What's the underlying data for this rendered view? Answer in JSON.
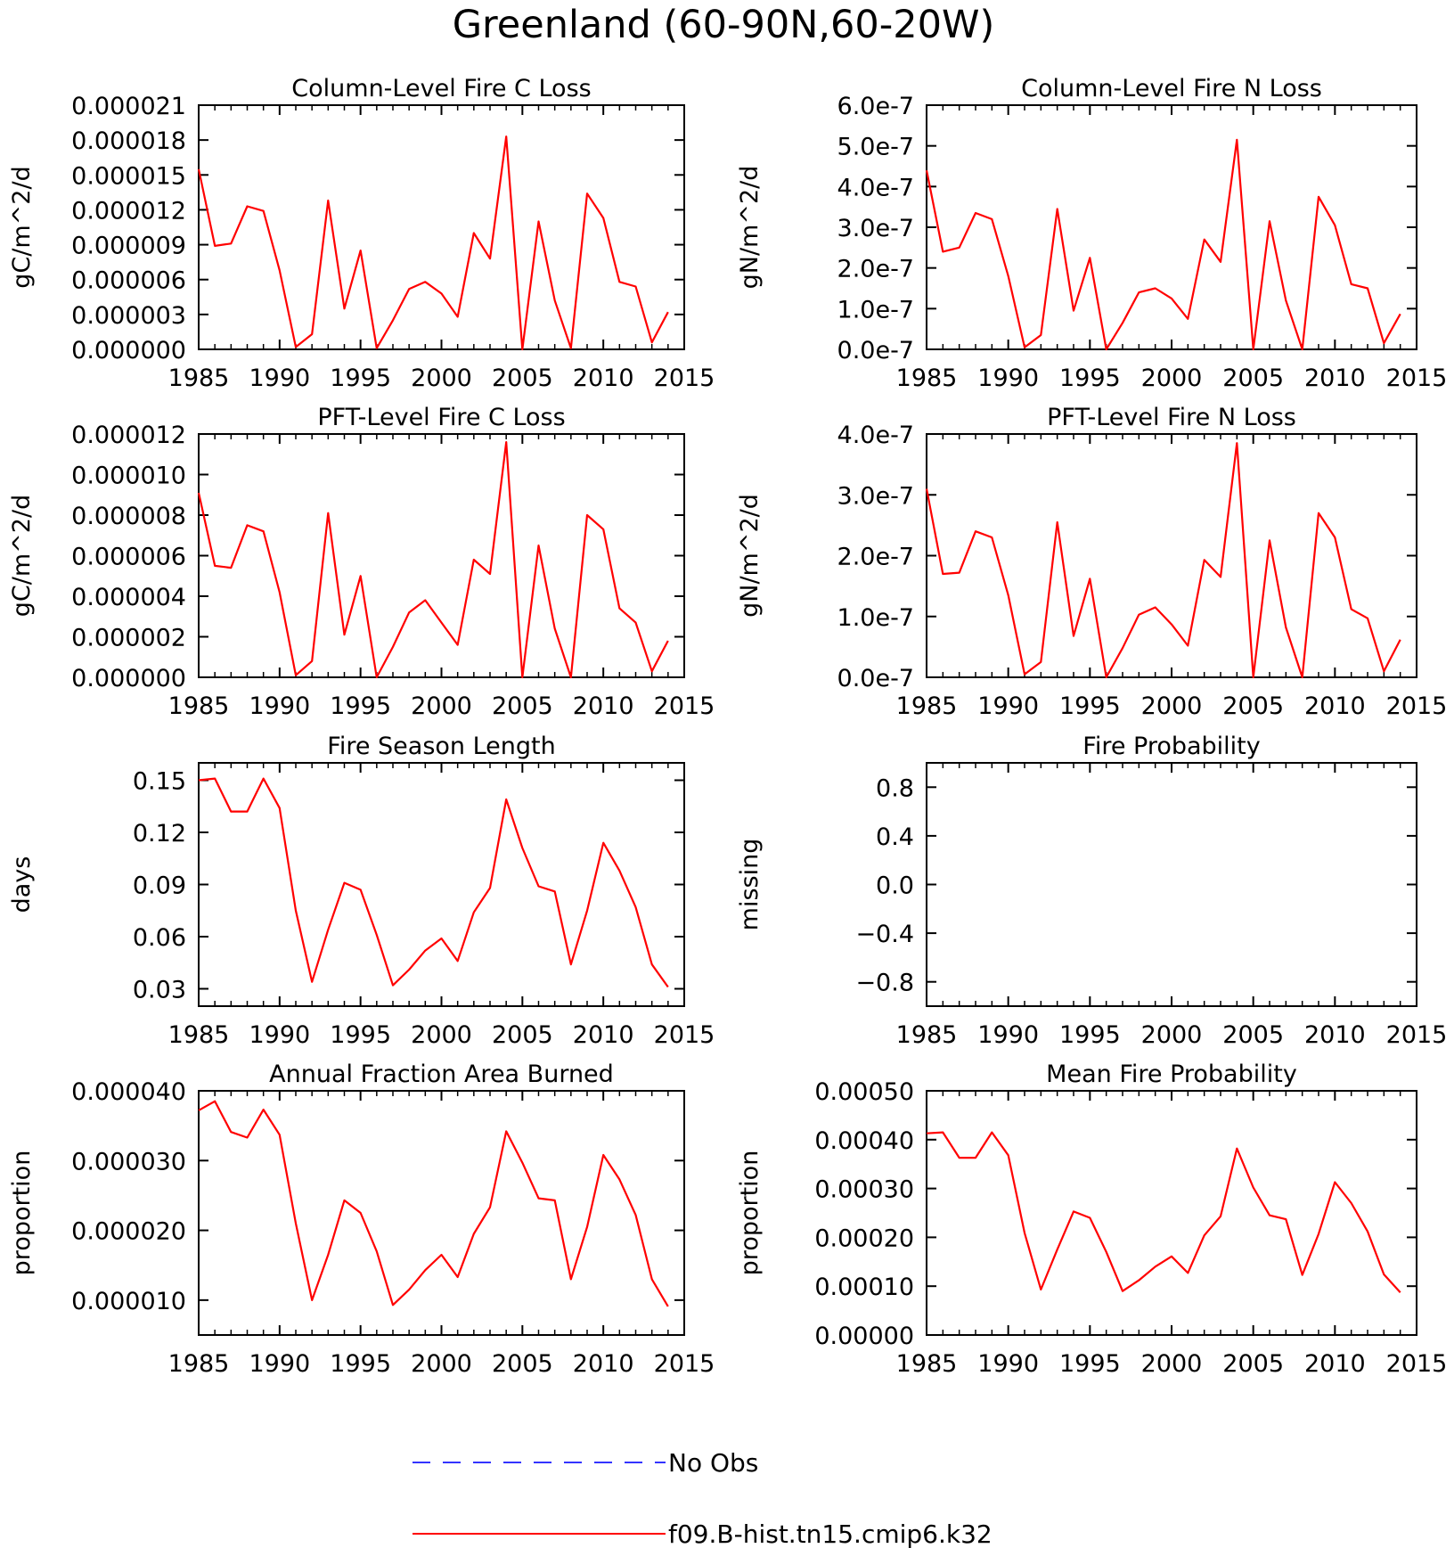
{
  "figure_title": "Greenland (60-90N,60-20W)",
  "legend": {
    "items": [
      {
        "label": "No Obs",
        "color": "#3333ff",
        "dashed": true
      },
      {
        "label": "f09.B-hist.tn15.cmip6.k32",
        "color": "#ff0000",
        "dashed": false
      }
    ]
  },
  "chart_data": [
    {
      "type": "line",
      "title": "Column-Level Fire C Loss",
      "ylabel": "gC/m^2/d",
      "xlabel": "",
      "xlim": [
        1985,
        2015
      ],
      "xticks": [
        1985,
        1990,
        1995,
        2000,
        2005,
        2010,
        2015
      ],
      "xtick_labels": [
        "1985",
        "1990",
        "1995",
        "2000",
        "2005",
        "2010",
        "2015"
      ],
      "ylim": [
        0,
        2.1e-05
      ],
      "yticks": [
        0,
        3e-06,
        6e-06,
        9e-06,
        1.2e-05,
        1.5e-05,
        1.8e-05,
        2.1e-05
      ],
      "ytick_labels": [
        "0.000000",
        "0.000003",
        "0.000006",
        "0.000009",
        "0.000012",
        "0.000015",
        "0.000018",
        "0.000021"
      ],
      "x": [
        1985,
        1986,
        1987,
        1988,
        1989,
        1990,
        1991,
        1992,
        1993,
        1994,
        1995,
        1996,
        1997,
        1998,
        1999,
        2000,
        2001,
        2002,
        2003,
        2004,
        2005,
        2006,
        2007,
        2008,
        2009,
        2010,
        2011,
        2012,
        2013,
        2014
      ],
      "series": [
        {
          "color": "#ff0000",
          "values": [
            1.55e-05,
            8.9e-06,
            9.1e-06,
            1.23e-05,
            1.19e-05,
            6.8e-06,
            2e-07,
            1.3e-06,
            1.28e-05,
            3.5e-06,
            8.5e-06,
            1e-07,
            2.5e-06,
            5.2e-06,
            5.8e-06,
            4.8e-06,
            2.8e-06,
            1e-05,
            7.8e-06,
            1.83e-05,
            0.0,
            1.1e-05,
            4.2e-06,
            1e-07,
            1.34e-05,
            1.13e-05,
            5.8e-06,
            5.4e-06,
            6e-07,
            3.2e-06
          ]
        }
      ]
    },
    {
      "type": "line",
      "title": "Column-Level Fire N Loss",
      "ylabel": "gN/m^2/d",
      "xlabel": "",
      "xlim": [
        1985,
        2015
      ],
      "xticks": [
        1985,
        1990,
        1995,
        2000,
        2005,
        2010,
        2015
      ],
      "xtick_labels": [
        "1985",
        "1990",
        "1995",
        "2000",
        "2005",
        "2010",
        "2015"
      ],
      "ylim": [
        0,
        6e-07
      ],
      "yticks": [
        0,
        1e-07,
        2e-07,
        3e-07,
        4e-07,
        5e-07,
        6e-07
      ],
      "ytick_labels": [
        "0.0e-7",
        "1.0e-7",
        "2.0e-7",
        "3.0e-7",
        "4.0e-7",
        "5.0e-7",
        "6.0e-7"
      ],
      "x": [
        1985,
        1986,
        1987,
        1988,
        1989,
        1990,
        1991,
        1992,
        1993,
        1994,
        1995,
        1996,
        1997,
        1998,
        1999,
        2000,
        2001,
        2002,
        2003,
        2004,
        2005,
        2006,
        2007,
        2008,
        2009,
        2010,
        2011,
        2012,
        2013,
        2014
      ],
      "series": [
        {
          "color": "#ff0000",
          "values": [
            4.4e-07,
            2.4e-07,
            2.5e-07,
            3.35e-07,
            3.2e-07,
            1.8e-07,
            5e-09,
            3.5e-08,
            3.45e-07,
            9.5e-08,
            2.25e-07,
            0.0,
            6.5e-08,
            1.4e-07,
            1.5e-07,
            1.25e-07,
            7.5e-08,
            2.7e-07,
            2.15e-07,
            5.15e-07,
            0.0,
            3.15e-07,
            1.2e-07,
            0.0,
            3.75e-07,
            3.05e-07,
            1.6e-07,
            1.5e-07,
            1.5e-08,
            8.7e-08
          ]
        }
      ]
    },
    {
      "type": "line",
      "title": "PFT-Level Fire C Loss",
      "ylabel": "gC/m^2/d",
      "xlabel": "",
      "xlim": [
        1985,
        2015
      ],
      "xticks": [
        1985,
        1990,
        1995,
        2000,
        2005,
        2010,
        2015
      ],
      "xtick_labels": [
        "1985",
        "1990",
        "1995",
        "2000",
        "2005",
        "2010",
        "2015"
      ],
      "ylim": [
        0,
        1.2e-05
      ],
      "yticks": [
        0,
        2e-06,
        4e-06,
        6e-06,
        8e-06,
        1e-05,
        1.2e-05
      ],
      "ytick_labels": [
        "0.000000",
        "0.000002",
        "0.000004",
        "0.000006",
        "0.000008",
        "0.000010",
        "0.000012"
      ],
      "x": [
        1985,
        1986,
        1987,
        1988,
        1989,
        1990,
        1991,
        1992,
        1993,
        1994,
        1995,
        1996,
        1997,
        1998,
        1999,
        2000,
        2001,
        2002,
        2003,
        2004,
        2005,
        2006,
        2007,
        2008,
        2009,
        2010,
        2011,
        2012,
        2013,
        2014
      ],
      "series": [
        {
          "color": "#ff0000",
          "values": [
            9.1e-06,
            5.5e-06,
            5.4e-06,
            7.5e-06,
            7.2e-06,
            4.2e-06,
            1e-07,
            8e-07,
            8.1e-06,
            2.1e-06,
            5e-06,
            0.0,
            1.5e-06,
            3.2e-06,
            3.8e-06,
            2.7e-06,
            1.6e-06,
            5.8e-06,
            5.1e-06,
            1.16e-05,
            0.0,
            6.5e-06,
            2.4e-06,
            0.0,
            8e-06,
            7.3e-06,
            3.4e-06,
            2.7e-06,
            3e-07,
            1.8e-06
          ]
        }
      ]
    },
    {
      "type": "line",
      "title": "PFT-Level Fire N Loss",
      "ylabel": "gN/m^2/d",
      "xlabel": "",
      "xlim": [
        1985,
        2015
      ],
      "xticks": [
        1985,
        1990,
        1995,
        2000,
        2005,
        2010,
        2015
      ],
      "xtick_labels": [
        "1985",
        "1990",
        "1995",
        "2000",
        "2005",
        "2010",
        "2015"
      ],
      "ylim": [
        0,
        4e-07
      ],
      "yticks": [
        0,
        1e-07,
        2e-07,
        3e-07,
        4e-07
      ],
      "ytick_labels": [
        "0.0e-7",
        "1.0e-7",
        "2.0e-7",
        "3.0e-7",
        "4.0e-7"
      ],
      "x": [
        1985,
        1986,
        1987,
        1988,
        1989,
        1990,
        1991,
        1992,
        1993,
        1994,
        1995,
        1996,
        1997,
        1998,
        1999,
        2000,
        2001,
        2002,
        2003,
        2004,
        2005,
        2006,
        2007,
        2008,
        2009,
        2010,
        2011,
        2012,
        2013,
        2014
      ],
      "series": [
        {
          "color": "#ff0000",
          "values": [
            3.1e-07,
            1.7e-07,
            1.72e-07,
            2.4e-07,
            2.3e-07,
            1.35e-07,
            5e-09,
            2.5e-08,
            2.55e-07,
            6.8e-08,
            1.62e-07,
            0.0,
            4.8e-08,
            1.03e-07,
            1.15e-07,
            8.7e-08,
            5.2e-08,
            1.93e-07,
            1.65e-07,
            3.85e-07,
            0.0,
            2.25e-07,
            8.2e-08,
            0.0,
            2.7e-07,
            2.3e-07,
            1.12e-07,
            9.7e-08,
            1e-08,
            6.2e-08
          ]
        }
      ]
    },
    {
      "type": "line",
      "title": "Fire Season Length",
      "ylabel": "days",
      "xlabel": "",
      "xlim": [
        1985,
        2015
      ],
      "xticks": [
        1985,
        1990,
        1995,
        2000,
        2005,
        2010,
        2015
      ],
      "xtick_labels": [
        "1985",
        "1990",
        "1995",
        "2000",
        "2005",
        "2010",
        "2015"
      ],
      "ylim": [
        0.02,
        0.16
      ],
      "yticks": [
        0.03,
        0.06,
        0.09,
        0.12,
        0.15
      ],
      "ytick_labels": [
        "0.03",
        "0.06",
        "0.09",
        "0.12",
        "0.15"
      ],
      "x": [
        1985,
        1986,
        1987,
        1988,
        1989,
        1990,
        1991,
        1992,
        1993,
        1994,
        1995,
        1996,
        1997,
        1998,
        1999,
        2000,
        2001,
        2002,
        2003,
        2004,
        2005,
        2006,
        2007,
        2008,
        2009,
        2010,
        2011,
        2012,
        2013,
        2014
      ],
      "series": [
        {
          "color": "#ff0000",
          "values": [
            0.15,
            0.151,
            0.132,
            0.132,
            0.151,
            0.134,
            0.075,
            0.034,
            0.064,
            0.091,
            0.087,
            0.061,
            0.032,
            0.041,
            0.052,
            0.059,
            0.046,
            0.074,
            0.088,
            0.139,
            0.111,
            0.089,
            0.086,
            0.044,
            0.075,
            0.114,
            0.098,
            0.077,
            0.044,
            0.031
          ]
        }
      ]
    },
    {
      "type": "line",
      "title": "Fire Probability",
      "ylabel": "missing",
      "xlabel": "",
      "xlim": [
        1985,
        2015
      ],
      "xticks": [
        1985,
        1990,
        1995,
        2000,
        2005,
        2010,
        2015
      ],
      "xtick_labels": [
        "1985",
        "1990",
        "1995",
        "2000",
        "2005",
        "2010",
        "2015"
      ],
      "ylim": [
        -1.0,
        1.0
      ],
      "yticks": [
        -0.8,
        -0.4,
        0.0,
        0.4,
        0.8
      ],
      "ytick_labels": [
        "−0.8",
        "−0.4",
        "0.0",
        "0.4",
        "0.8"
      ],
      "x": [],
      "series": []
    },
    {
      "type": "line",
      "title": "Annual Fraction Area Burned",
      "ylabel": "proportion",
      "xlabel": "",
      "xlim": [
        1985,
        2015
      ],
      "xticks": [
        1985,
        1990,
        1995,
        2000,
        2005,
        2010,
        2015
      ],
      "xtick_labels": [
        "1985",
        "1990",
        "1995",
        "2000",
        "2005",
        "2010",
        "2015"
      ],
      "ylim": [
        5e-06,
        4e-05
      ],
      "yticks": [
        1e-05,
        2e-05,
        3e-05,
        4e-05
      ],
      "ytick_labels": [
        "0.000010",
        "0.000020",
        "0.000030",
        "0.000040"
      ],
      "x": [
        1985,
        1986,
        1987,
        1988,
        1989,
        1990,
        1991,
        1992,
        1993,
        1994,
        1995,
        1996,
        1997,
        1998,
        1999,
        2000,
        2001,
        2002,
        2003,
        2004,
        2005,
        2006,
        2007,
        2008,
        2009,
        2010,
        2011,
        2012,
        2013,
        2014
      ],
      "series": [
        {
          "color": "#ff0000",
          "values": [
            3.72e-05,
            3.85e-05,
            3.41e-05,
            3.33e-05,
            3.73e-05,
            3.37e-05,
            2.1e-05,
            1e-05,
            1.65e-05,
            2.43e-05,
            2.25e-05,
            1.7e-05,
            9.3e-06,
            1.15e-05,
            1.43e-05,
            1.65e-05,
            1.33e-05,
            1.95e-05,
            2.33e-05,
            3.42e-05,
            2.97e-05,
            2.46e-05,
            2.43e-05,
            1.3e-05,
            2.05e-05,
            3.08e-05,
            2.73e-05,
            2.22e-05,
            1.3e-05,
            9.1e-06
          ]
        }
      ]
    },
    {
      "type": "line",
      "title": "Mean Fire Probability",
      "ylabel": "proportion",
      "xlabel": "",
      "xlim": [
        1985,
        2015
      ],
      "xticks": [
        1985,
        1990,
        1995,
        2000,
        2005,
        2010,
        2015
      ],
      "xtick_labels": [
        "1985",
        "1990",
        "1995",
        "2000",
        "2005",
        "2010",
        "2015"
      ],
      "ylim": [
        0,
        0.0005
      ],
      "yticks": [
        0,
        0.0001,
        0.0002,
        0.0003,
        0.0004,
        0.0005
      ],
      "ytick_labels": [
        "0.00000",
        "0.00010",
        "0.00020",
        "0.00030",
        "0.00040",
        "0.00050"
      ],
      "x": [
        1985,
        1986,
        1987,
        1988,
        1989,
        1990,
        1991,
        1992,
        1993,
        1994,
        1995,
        1996,
        1997,
        1998,
        1999,
        2000,
        2001,
        2002,
        2003,
        2004,
        2005,
        2006,
        2007,
        2008,
        2009,
        2010,
        2011,
        2012,
        2013,
        2014
      ],
      "series": [
        {
          "color": "#ff0000",
          "values": [
            0.000413,
            0.000415,
            0.000363,
            0.000363,
            0.000415,
            0.000368,
            0.000209,
            9.3e-05,
            0.000175,
            0.000253,
            0.00024,
            0.00017,
            9e-05,
            0.000112,
            0.00014,
            0.000161,
            0.000127,
            0.000204,
            0.000243,
            0.000382,
            0.000302,
            0.000245,
            0.000237,
            0.000123,
            0.000207,
            0.000313,
            0.00027,
            0.000212,
            0.000124,
            8.7e-05
          ]
        }
      ]
    }
  ]
}
